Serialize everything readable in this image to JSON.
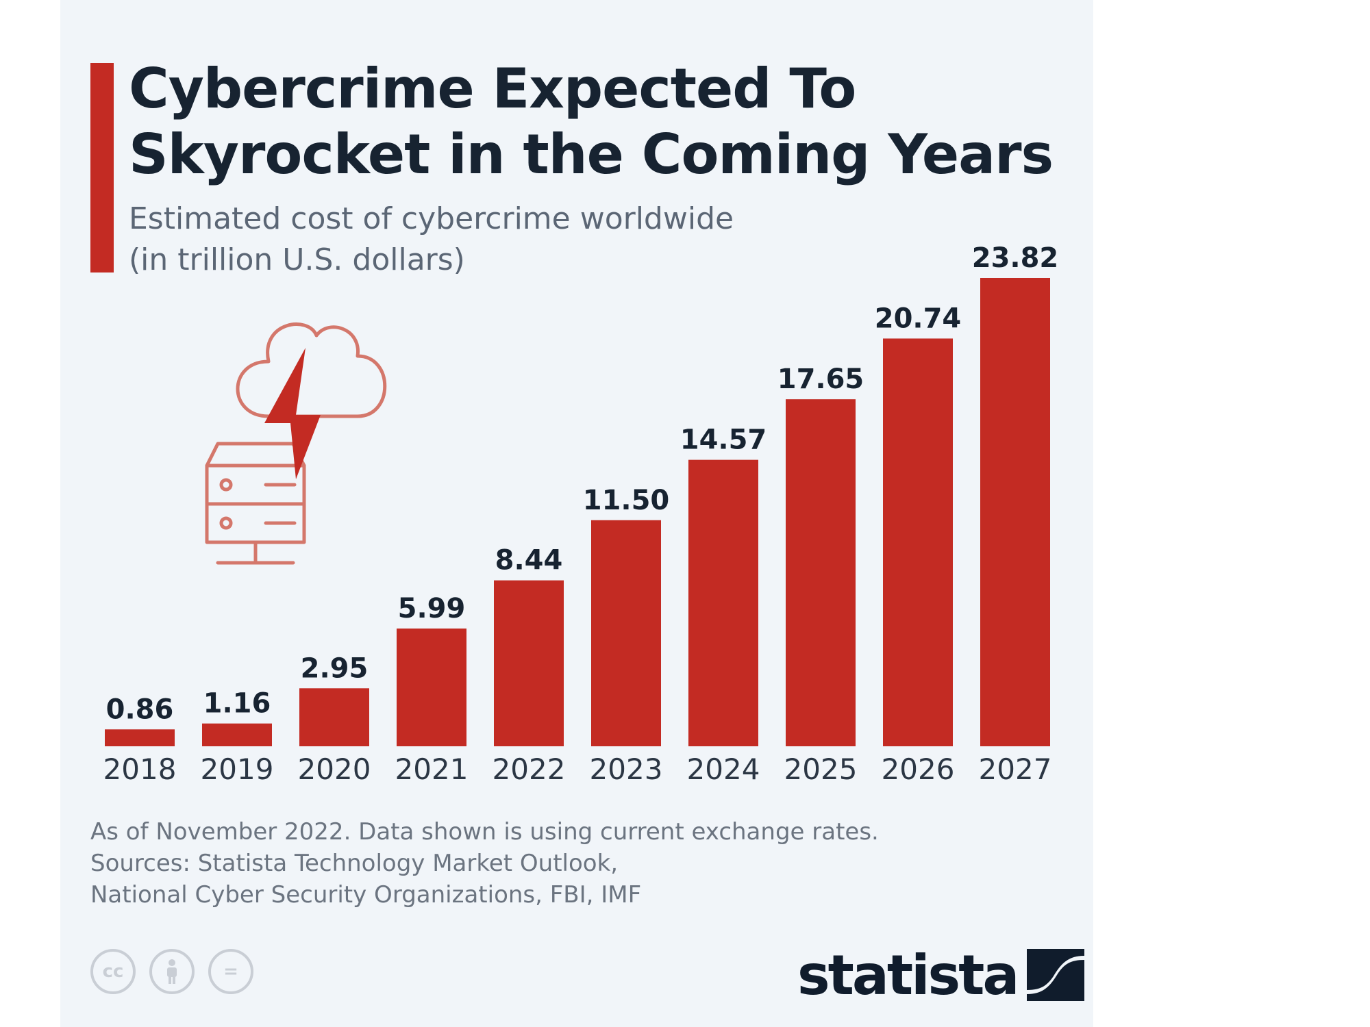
{
  "header": {
    "title_line1": "Cybercrime Expected To",
    "title_line2": "Skyrocket in the Coming Years",
    "subtitle_line1": "Estimated cost of cybercrime worldwide",
    "subtitle_line2": "(in trillion U.S. dollars)"
  },
  "chart_data": {
    "type": "bar",
    "title": "Cybercrime Expected To Skyrocket in the Coming Years",
    "subtitle": "Estimated cost of cybercrime worldwide (in trillion U.S. dollars)",
    "categories": [
      "2018",
      "2019",
      "2020",
      "2021",
      "2022",
      "2023",
      "2024",
      "2025",
      "2026",
      "2027"
    ],
    "values": [
      0.86,
      1.16,
      2.95,
      5.99,
      8.44,
      11.5,
      14.57,
      17.65,
      20.74,
      23.82
    ],
    "labels": [
      "0.86",
      "1.16",
      "2.95",
      "5.99",
      "8.44",
      "11.50",
      "14.57",
      "17.65",
      "20.74",
      "23.82"
    ],
    "ylim": [
      0,
      23.82
    ],
    "grid": false,
    "legend": "none",
    "bar_color": "#c32b23",
    "label_color": "#172331"
  },
  "footer": {
    "note": "As of November 2022. Data shown is using current exchange rates.",
    "sources_line1": "Sources: Statista Technology Market Outlook,",
    "sources_line2": "National Cyber Security Organizations, FBI, IMF",
    "license_icons": [
      "cc-icon",
      "person-icon",
      "equals-icon"
    ],
    "license_glyphs": [
      "cc",
      "æ",
      "="
    ],
    "brand": "statista"
  },
  "colors": {
    "accent": "#c32b23",
    "text_dark": "#172331",
    "text_muted": "#5b6675",
    "card_background": "#f1f5f9"
  },
  "icons": [
    "cloud-server-lightning-icon",
    "statista-logo-icon"
  ]
}
